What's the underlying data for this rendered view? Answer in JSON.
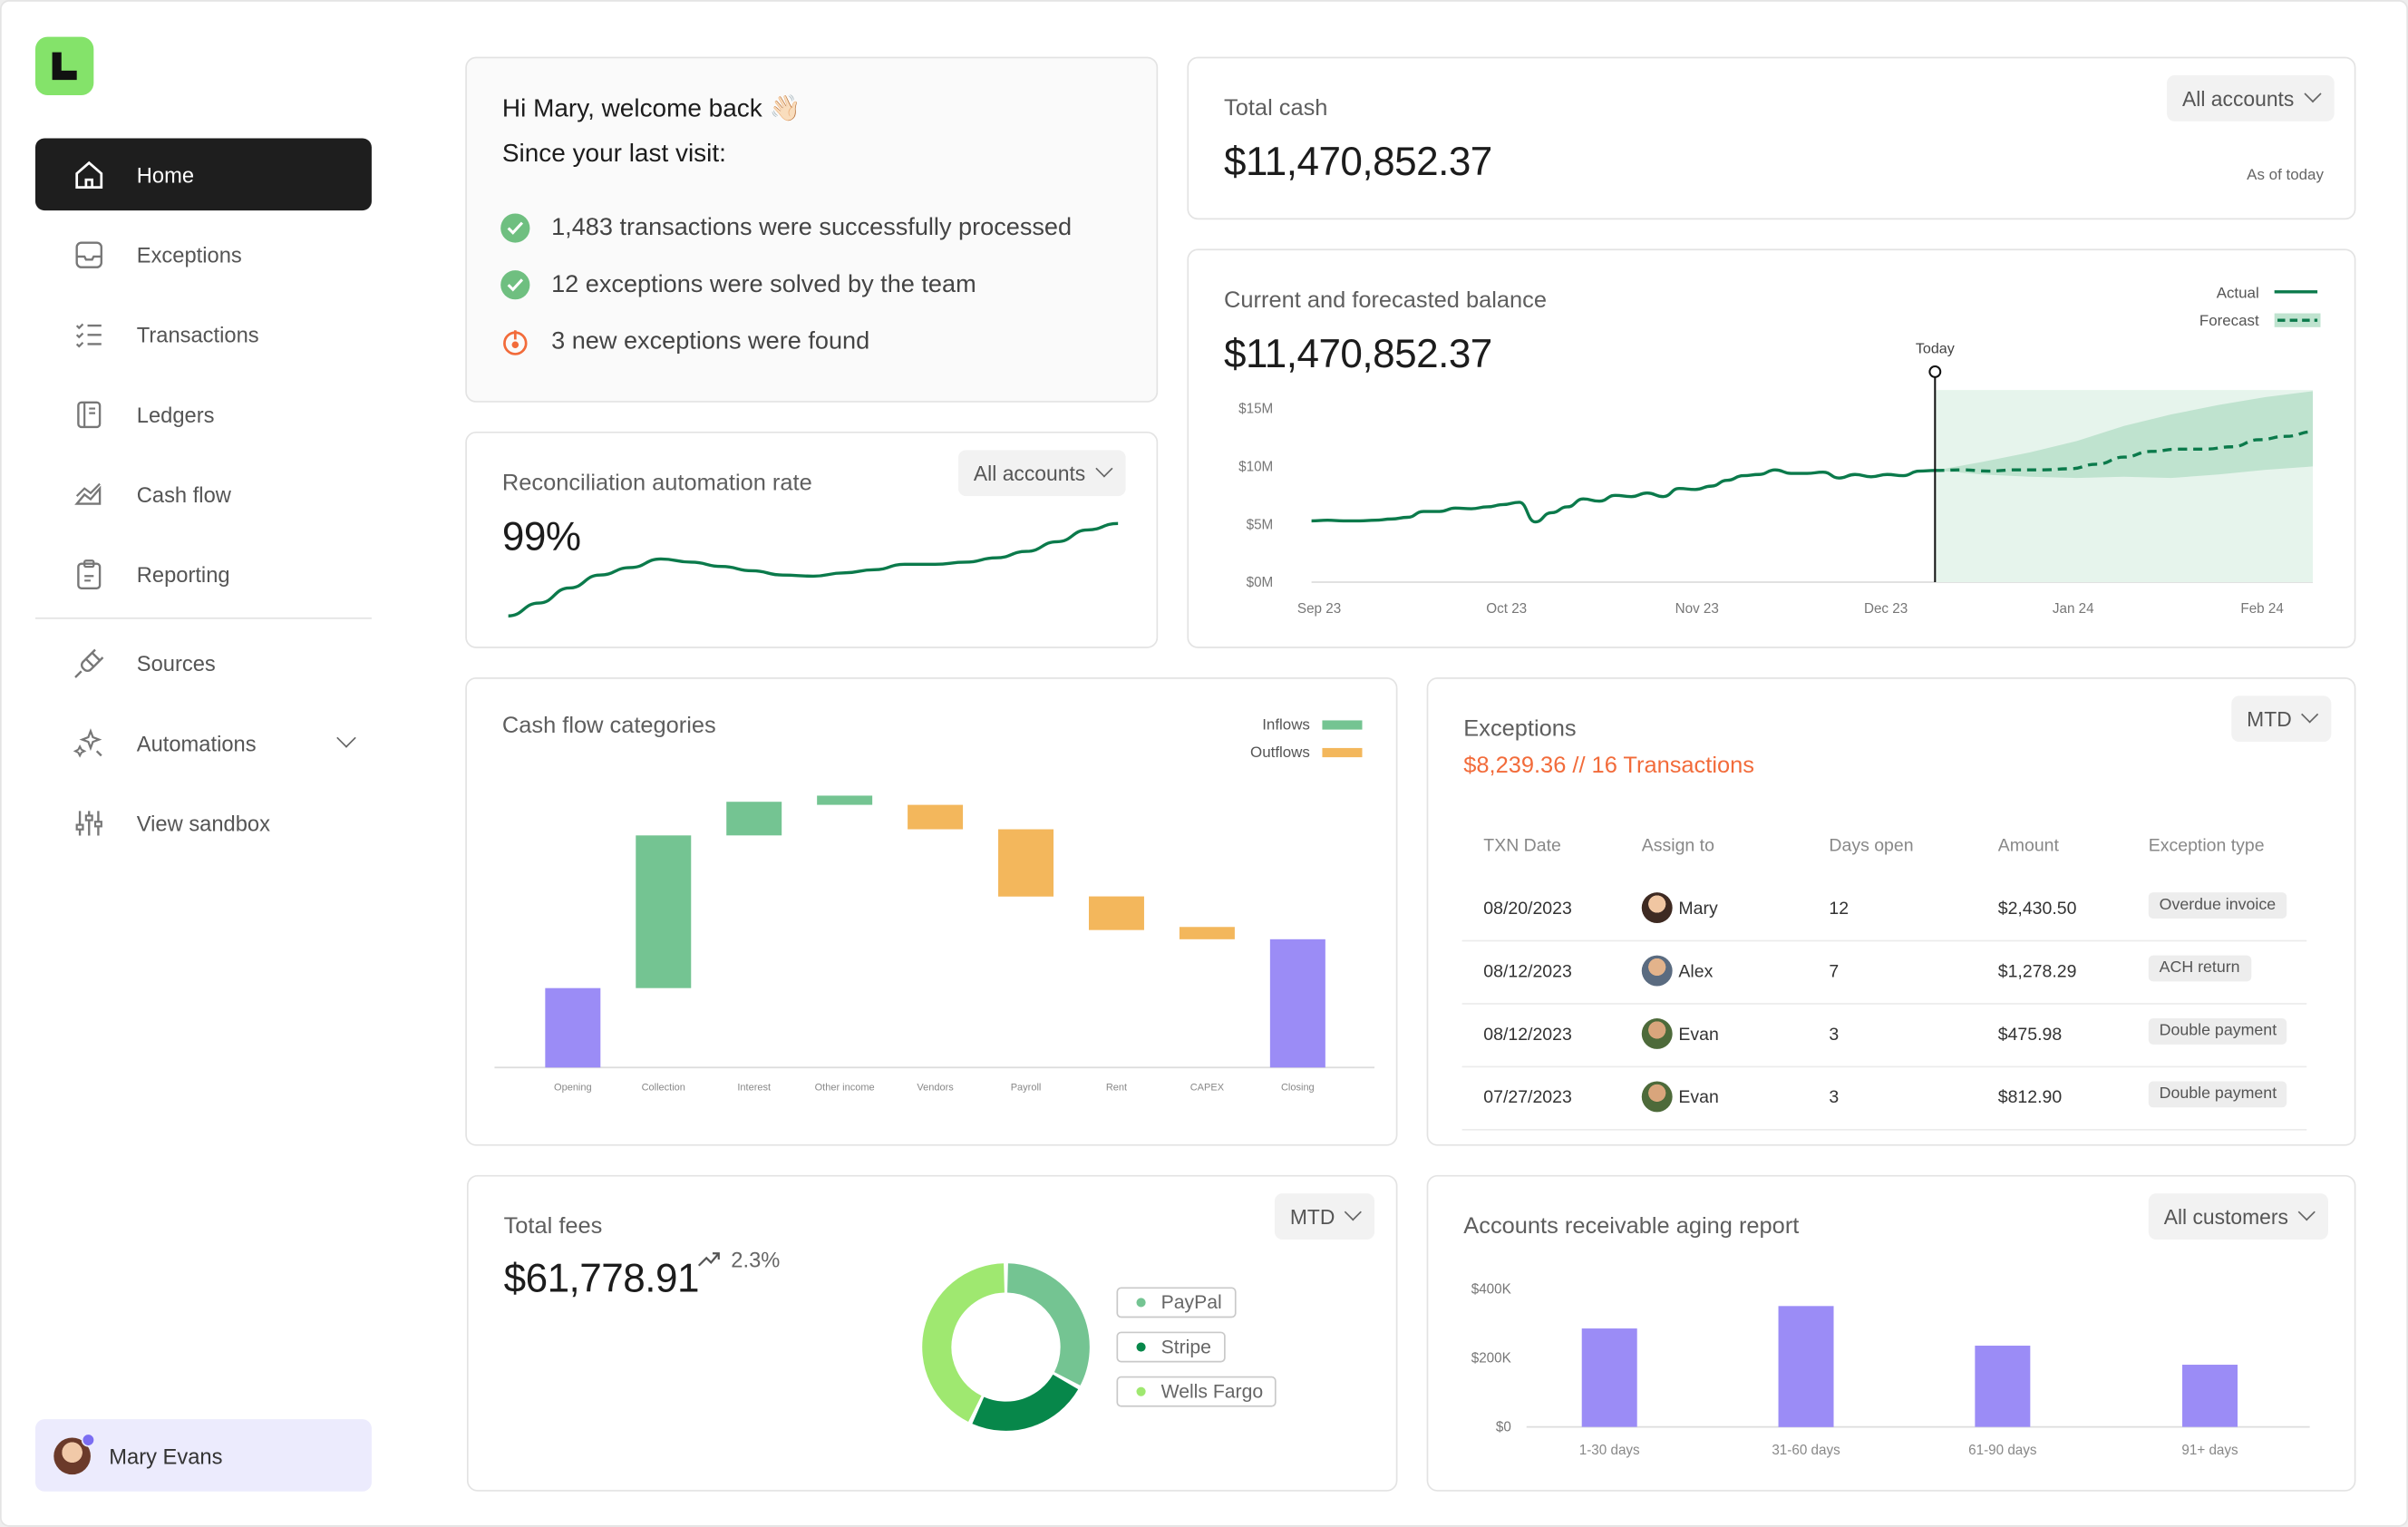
{
  "sidebar": {
    "items": [
      {
        "label": "Home",
        "icon": "home-icon",
        "active": true
      },
      {
        "label": "Exceptions",
        "icon": "inbox-icon"
      },
      {
        "label": "Transactions",
        "icon": "list-icon"
      },
      {
        "label": "Ledgers",
        "icon": "book-icon"
      },
      {
        "label": "Cash flow",
        "icon": "chart-area-icon"
      },
      {
        "label": "Reporting",
        "icon": "clipboard-icon"
      }
    ],
    "items2": [
      {
        "label": "Sources",
        "icon": "plug-icon"
      },
      {
        "label": "Automations",
        "icon": "sparkle-icon"
      },
      {
        "label": "View sandbox",
        "icon": "sliders-icon"
      }
    ],
    "user": "Mary Evans"
  },
  "welcome": {
    "greeting": "Hi Mary, welcome back 👋🏻",
    "subtitle": "Since your last visit:",
    "items": [
      {
        "text": "1,483 transactions were successfully processed",
        "status": "success"
      },
      {
        "text": "12 exceptions were solved by the team",
        "status": "success"
      },
      {
        "text": "3 new exceptions were found",
        "status": "alert"
      }
    ]
  },
  "total_cash": {
    "title": "Total cash",
    "value": "$11,470,852.37",
    "filter": "All accounts",
    "note": "As of today"
  },
  "reconciliation": {
    "title": "Reconciliation automation rate",
    "value": "99%",
    "filter": "All accounts"
  },
  "balance": {
    "title": "Current and forecasted balance",
    "value": "$11,470,852.37",
    "legend_actual": "Actual",
    "legend_forecast": "Forecast",
    "today_label": "Today"
  },
  "cashflow": {
    "title": "Cash flow categories",
    "legend_inflows": "Inflows",
    "legend_outflows": "Outflows"
  },
  "exceptions": {
    "title": "Exceptions",
    "summary": "$8,239.36 // 16 Transactions",
    "filter": "MTD",
    "headers": [
      "TXN Date",
      "Assign to",
      "Days open",
      "Amount",
      "Exception type"
    ],
    "rows": [
      {
        "date": "08/20/2023",
        "assignee": "Mary",
        "days": "12",
        "amount": "$2,430.50",
        "type": "Overdue invoice"
      },
      {
        "date": "08/12/2023",
        "assignee": "Alex",
        "days": "7",
        "amount": "$1,278.29",
        "type": "ACH return"
      },
      {
        "date": "08/12/2023",
        "assignee": "Evan",
        "days": "3",
        "amount": "$475.98",
        "type": "Double payment"
      },
      {
        "date": "07/27/2023",
        "assignee": "Evan",
        "days": "3",
        "amount": "$812.90",
        "type": "Double payment"
      }
    ]
  },
  "fees": {
    "title": "Total fees",
    "value": "$61,778.91",
    "change": "2.3%",
    "filter": "MTD",
    "legend": [
      {
        "label": "PayPal",
        "color": "#74c492"
      },
      {
        "label": "Stripe",
        "color": "#07874a"
      },
      {
        "label": "Wells Fargo",
        "color": "#9fe870"
      }
    ]
  },
  "aging": {
    "title": "Accounts receivable aging report",
    "filter": "All customers"
  },
  "colors": {
    "accent_green": "#0b7a4b",
    "inflow": "#74c492",
    "outflow": "#f3b75c",
    "balance": "#9b8cf6",
    "alert": "#f26b3a"
  },
  "chart_data": [
    {
      "type": "line",
      "id": "reconciliation",
      "x": [
        0,
        1,
        2,
        3,
        4,
        5,
        6,
        7,
        8,
        9,
        10,
        11,
        12,
        13,
        14,
        15,
        16,
        17,
        18,
        19,
        20
      ],
      "values": [
        92.0,
        93.2,
        94.6,
        95.8,
        96.5,
        97.3,
        97.0,
        96.6,
        96.2,
        95.8,
        95.7,
        96.0,
        96.3,
        96.8,
        96.8,
        97.0,
        97.4,
        98.0,
        98.9,
        100.0,
        100.6
      ],
      "ylim": [
        91,
        101
      ]
    },
    {
      "type": "line",
      "id": "balance",
      "x_ticks": [
        "Sep 23",
        "Oct 23",
        "Nov 23",
        "Dec 23",
        "Jan 24",
        "Feb 24"
      ],
      "y_ticks": [
        "$0M",
        "$5M",
        "$10M",
        "$15M"
      ],
      "ylim": [
        0,
        15
      ],
      "series": [
        {
          "name": "Actual",
          "values": [
            5.3,
            5.35,
            5.3,
            5.3,
            5.35,
            5.45,
            5.6,
            6.1,
            6.1,
            6.4,
            6.35,
            6.5,
            6.7,
            6.9,
            5.2,
            6.0,
            6.5,
            7.2,
            7.0,
            7.5,
            7.4,
            7.7,
            7.4,
            8.1,
            8.0,
            8.3,
            8.8,
            9.2,
            9.3,
            9.7,
            9.4,
            9.4,
            9.5,
            9.0,
            9.3,
            9.1,
            9.3,
            9.2,
            9.6,
            9.65
          ]
        },
        {
          "name": "Forecast",
          "values": [
            9.65,
            9.7,
            9.6,
            9.7,
            9.7,
            9.8,
            10.2,
            10.8,
            11.3,
            11.5,
            11.5,
            11.7,
            12.3,
            12.6,
            13.0
          ]
        }
      ],
      "forecast_band_upper": [
        9.65,
        10.4,
        11.2,
        12.2,
        13.5,
        14.5,
        15.3,
        16.0,
        16.5
      ],
      "forecast_band_lower": [
        9.65,
        9.3,
        9.1,
        9.0,
        9.1,
        9.0,
        9.3,
        9.7,
        10.0
      ]
    },
    {
      "type": "bar",
      "id": "cashflow_waterfall",
      "categories": [
        "Opening",
        "Collection",
        "Interest",
        "Other income",
        "Vendors",
        "Payroll",
        "Rent",
        "CAPEX",
        "Closing"
      ],
      "start": [
        0,
        1.3,
        3.8,
        4.3,
        4.3,
        3.9,
        2.8,
        2.3,
        0
      ],
      "end": [
        1.3,
        3.8,
        4.35,
        4.45,
        3.9,
        2.8,
        2.25,
        2.1,
        2.1
      ],
      "kind": [
        "total",
        "inflow",
        "inflow",
        "inflow",
        "outflow",
        "outflow",
        "outflow",
        "outflow",
        "total"
      ]
    },
    {
      "type": "pie",
      "id": "fees_donut",
      "labels": [
        "PayPal",
        "Stripe",
        "Wells Fargo"
      ],
      "values": [
        33,
        24,
        43
      ]
    },
    {
      "type": "bar",
      "id": "aging",
      "categories": [
        "1-30 days",
        "31-60 days",
        "61-90 days",
        "91+ days"
      ],
      "values": [
        285,
        350,
        235,
        180
      ],
      "y_ticks": [
        "$0",
        "$200K",
        "$400K"
      ],
      "ylim": [
        0,
        400
      ]
    }
  ]
}
